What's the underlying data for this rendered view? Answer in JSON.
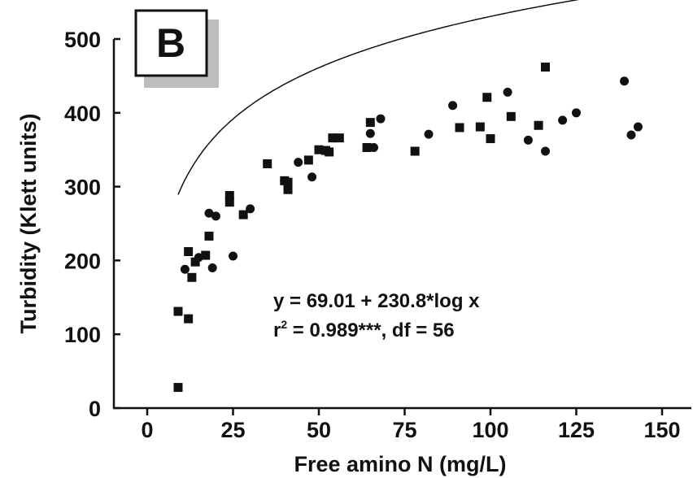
{
  "panel_label": "B",
  "chart_data": {
    "type": "scatter",
    "xlabel": "Free amino N (mg/L)",
    "ylabel": "Turbidity (Klett units)",
    "xlim": [
      -10,
      158
    ],
    "ylim": [
      0,
      500
    ],
    "xticks": [
      0,
      25,
      50,
      75,
      100,
      125,
      150
    ],
    "yticks": [
      0,
      100,
      200,
      300,
      400,
      500
    ],
    "grid": false,
    "legend": "none",
    "series": [
      {
        "marker": "circle",
        "x": [
          11,
          15,
          18,
          19,
          20,
          25,
          30,
          40,
          44,
          48,
          53,
          65,
          66,
          68,
          82,
          89,
          105,
          111,
          116,
          121,
          125,
          139,
          141,
          143
        ],
        "y": [
          188,
          204,
          264,
          190,
          260,
          206,
          270,
          308,
          333,
          313,
          347,
          372,
          353,
          392,
          371,
          410,
          428,
          363,
          348,
          390,
          400,
          443,
          370,
          381
        ]
      },
      {
        "marker": "square",
        "x": [
          9,
          9,
          12,
          12,
          13,
          14,
          17,
          18,
          24,
          24,
          28,
          35,
          40,
          41,
          41,
          47,
          50,
          52,
          53,
          54,
          56,
          64,
          65,
          78,
          91,
          97,
          99,
          100,
          106,
          114,
          116
        ],
        "y": [
          28,
          131,
          121,
          212,
          177,
          198,
          207,
          233,
          288,
          279,
          262,
          331,
          308,
          306,
          296,
          336,
          350,
          349,
          347,
          366,
          366,
          353,
          387,
          348,
          380,
          381,
          421,
          365,
          395,
          383,
          462
        ]
      }
    ],
    "fit": {
      "equation": "y = 69.01 + 230.8*log x",
      "intercept": 69.01,
      "slope": 230.8,
      "x_range": [
        9,
        160
      ]
    },
    "annotations": [
      {
        "line": "y = 69.01 + 230.8*log x"
      },
      {
        "prefix": "r",
        "sup": "2",
        "suffix": " = 0.989***, df = 56"
      }
    ]
  }
}
